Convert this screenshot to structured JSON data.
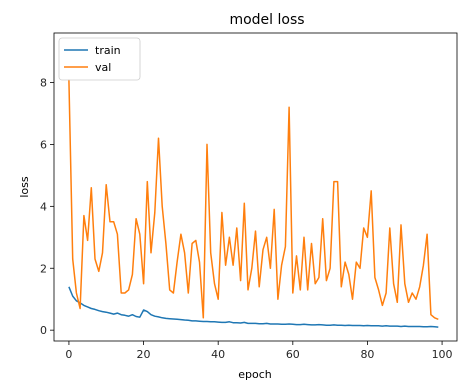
{
  "chart_data": {
    "type": "line",
    "title": "model loss",
    "xlabel": "epoch",
    "ylabel": "loss",
    "xlim": [
      -4,
      104
    ],
    "ylim": [
      -0.35,
      9.6
    ],
    "xticks": [
      0,
      20,
      40,
      60,
      80,
      100
    ],
    "yticks": [
      0,
      2,
      4,
      6,
      8
    ],
    "grid": false,
    "legend": {
      "placement": "top-left"
    },
    "series": [
      {
        "name": "train",
        "color": "#1f77b4",
        "x": [
          0,
          1,
          2,
          3,
          4,
          5,
          6,
          7,
          8,
          9,
          10,
          11,
          12,
          13,
          14,
          15,
          16,
          17,
          18,
          19,
          20,
          21,
          22,
          23,
          24,
          25,
          26,
          27,
          28,
          29,
          30,
          31,
          32,
          33,
          34,
          35,
          36,
          37,
          38,
          39,
          40,
          41,
          42,
          43,
          44,
          45,
          46,
          47,
          48,
          49,
          50,
          51,
          52,
          53,
          54,
          55,
          56,
          57,
          58,
          59,
          60,
          61,
          62,
          63,
          64,
          65,
          66,
          67,
          68,
          69,
          70,
          71,
          72,
          73,
          74,
          75,
          76,
          77,
          78,
          79,
          80,
          81,
          82,
          83,
          84,
          85,
          86,
          87,
          88,
          89,
          90,
          91,
          92,
          93,
          94,
          95,
          96,
          97,
          98,
          99
        ],
        "values": [
          1.4,
          1.1,
          0.95,
          0.88,
          0.8,
          0.75,
          0.7,
          0.67,
          0.63,
          0.6,
          0.58,
          0.55,
          0.52,
          0.55,
          0.5,
          0.48,
          0.45,
          0.5,
          0.44,
          0.42,
          0.65,
          0.6,
          0.5,
          0.45,
          0.43,
          0.4,
          0.38,
          0.37,
          0.36,
          0.35,
          0.34,
          0.33,
          0.32,
          0.3,
          0.3,
          0.29,
          0.28,
          0.28,
          0.27,
          0.27,
          0.26,
          0.25,
          0.25,
          0.27,
          0.24,
          0.24,
          0.23,
          0.25,
          0.22,
          0.22,
          0.22,
          0.21,
          0.21,
          0.22,
          0.2,
          0.2,
          0.2,
          0.19,
          0.19,
          0.2,
          0.19,
          0.18,
          0.18,
          0.19,
          0.18,
          0.17,
          0.17,
          0.18,
          0.17,
          0.16,
          0.16,
          0.17,
          0.16,
          0.16,
          0.15,
          0.16,
          0.15,
          0.15,
          0.15,
          0.14,
          0.15,
          0.14,
          0.14,
          0.14,
          0.13,
          0.14,
          0.13,
          0.13,
          0.13,
          0.12,
          0.13,
          0.12,
          0.12,
          0.12,
          0.12,
          0.11,
          0.11,
          0.12,
          0.11,
          0.1
        ]
      },
      {
        "name": "val",
        "color": "#ff7f0e",
        "x": [
          0,
          1,
          2,
          3,
          4,
          5,
          6,
          7,
          8,
          9,
          10,
          11,
          12,
          13,
          14,
          15,
          16,
          17,
          18,
          19,
          20,
          21,
          22,
          23,
          24,
          25,
          26,
          27,
          28,
          29,
          30,
          31,
          32,
          33,
          34,
          35,
          36,
          37,
          38,
          39,
          40,
          41,
          42,
          43,
          44,
          45,
          46,
          47,
          48,
          49,
          50,
          51,
          52,
          53,
          54,
          55,
          56,
          57,
          58,
          59,
          60,
          61,
          62,
          63,
          64,
          65,
          66,
          67,
          68,
          69,
          70,
          71,
          72,
          73,
          74,
          75,
          76,
          77,
          78,
          79,
          80,
          81,
          82,
          83,
          84,
          85,
          86,
          87,
          88,
          89,
          90,
          91,
          92,
          93,
          94,
          95,
          96,
          97,
          98,
          99
        ],
        "values": [
          8.1,
          2.3,
          1.2,
          0.7,
          3.7,
          2.9,
          4.6,
          2.3,
          1.9,
          2.5,
          4.7,
          3.5,
          3.5,
          3.1,
          1.2,
          1.2,
          1.3,
          1.8,
          3.6,
          3.1,
          1.5,
          4.8,
          2.5,
          3.8,
          6.2,
          4.0,
          2.8,
          1.3,
          1.2,
          2.2,
          3.1,
          2.5,
          1.2,
          2.8,
          2.9,
          2.2,
          0.4,
          6.0,
          2.5,
          1.5,
          1.0,
          3.8,
          2.1,
          3.0,
          2.1,
          3.3,
          1.6,
          4.1,
          1.3,
          2.0,
          3.2,
          1.4,
          2.6,
          3.0,
          2.0,
          3.9,
          1.0,
          2.1,
          2.7,
          7.2,
          1.2,
          2.4,
          1.3,
          3.0,
          1.3,
          2.8,
          1.5,
          1.7,
          3.6,
          1.6,
          2.0,
          4.8,
          4.8,
          1.4,
          2.2,
          1.8,
          1.0,
          2.2,
          2.0,
          3.3,
          3.0,
          4.5,
          1.7,
          1.3,
          0.8,
          1.2,
          3.3,
          1.5,
          0.9,
          3.4,
          1.5,
          0.9,
          1.2,
          1.0,
          1.4,
          2.1,
          3.1,
          0.5,
          0.4,
          0.35
        ]
      }
    ]
  }
}
